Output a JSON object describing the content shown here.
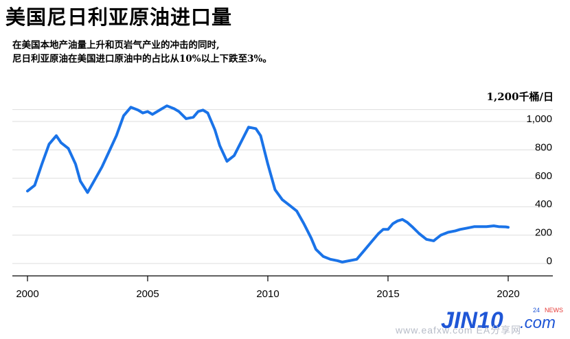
{
  "header": {
    "title": "美国尼日利亚原油进口量",
    "subtitle_line1": "在美国本地产油量上升和页岩气产业的冲击的同时,",
    "subtitle_line2": "尼日利亚原油在美国进口原油中的占比从10%以上下跌至3%。"
  },
  "watermark": {
    "logo": "JIN10",
    "com": ".com",
    "tag_24": "24",
    "tag_news": "NEWS",
    "url": "www.eafxw.com  EA分享网"
  },
  "colors": {
    "line": "#1a73e8",
    "grid": "#dddddd",
    "axis": "#000000"
  },
  "chart_data": {
    "type": "line",
    "title": "美国尼日利亚原油进口量",
    "unit_label": "1,200千桶/日",
    "xlim": [
      2000,
      2020.9
    ],
    "ylim": [
      -80,
      1200
    ],
    "y_ticks": [
      0,
      200,
      400,
      600,
      800,
      1000
    ],
    "y_tick_labels": [
      "0",
      "200",
      "400",
      "600",
      "800",
      "1,000"
    ],
    "x_ticks": [
      2000,
      2005,
      2010,
      2015,
      2020
    ],
    "x_tick_labels": [
      "2000",
      "2005",
      "2010",
      "2015",
      "2020"
    ],
    "grid": true,
    "series": [
      {
        "x": [
          2000.0,
          2000.3,
          2000.6,
          2000.9,
          2001.2,
          2001.4,
          2001.7,
          2002.0,
          2002.2,
          2002.5,
          2002.7,
          2002.9,
          2003.1,
          2003.4,
          2003.7,
          2004.0,
          2004.3,
          2004.6,
          2004.8,
          2005.0,
          2005.2,
          2005.5,
          2005.8,
          2006.1,
          2006.3,
          2006.6,
          2006.9,
          2007.1,
          2007.3,
          2007.5,
          2007.8,
          2008.0,
          2008.3,
          2008.6,
          2008.9,
          2009.2,
          2009.5,
          2009.7,
          2010.0,
          2010.3,
          2010.6,
          2010.9,
          2011.2,
          2011.5,
          2011.8,
          2012.0,
          2012.3,
          2012.6,
          2012.9,
          2013.1,
          2013.4,
          2013.7,
          2014.0,
          2014.3,
          2014.6,
          2014.8,
          2015.0,
          2015.2,
          2015.4,
          2015.6,
          2015.8,
          2016.0,
          2016.3,
          2016.6,
          2016.9,
          2017.2,
          2017.5,
          2017.8,
          2018.0,
          2018.3,
          2018.6,
          2018.9,
          2019.1,
          2019.4,
          2019.6,
          2019.9,
          2020.0
        ],
        "values": [
          510,
          550,
          700,
          840,
          900,
          850,
          810,
          700,
          580,
          500,
          560,
          620,
          680,
          790,
          900,
          1040,
          1100,
          1080,
          1060,
          1070,
          1050,
          1080,
          1110,
          1090,
          1070,
          1020,
          1030,
          1070,
          1080,
          1060,
          940,
          830,
          720,
          760,
          860,
          960,
          950,
          900,
          700,
          520,
          450,
          410,
          370,
          280,
          180,
          100,
          50,
          30,
          20,
          10,
          20,
          30,
          90,
          150,
          210,
          240,
          240,
          280,
          300,
          310,
          290,
          260,
          210,
          170,
          160,
          200,
          220,
          230,
          240,
          250,
          260,
          260,
          260,
          265,
          260,
          258,
          255
        ]
      }
    ]
  }
}
